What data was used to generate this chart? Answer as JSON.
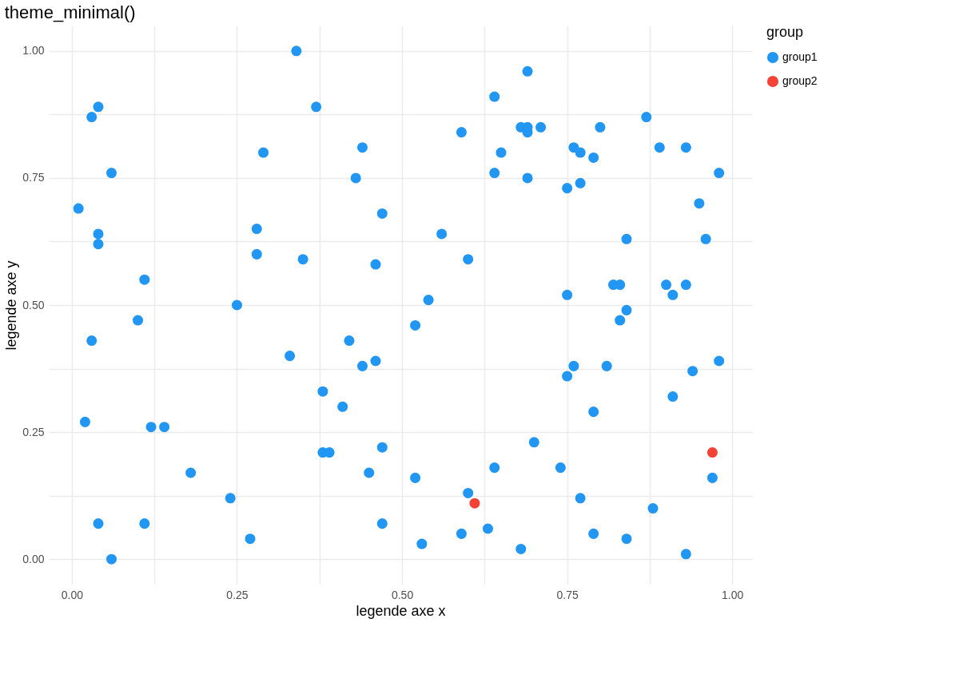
{
  "chart_data": {
    "type": "scatter",
    "title": "theme_minimal()",
    "xlabel": "legende axe x",
    "ylabel": "legende axe y",
    "legend_title": "group",
    "legend": "right",
    "grid": true,
    "marker": "circle",
    "xlim": [
      -0.035,
      1.03
    ],
    "ylim": [
      -0.05,
      1.05
    ],
    "xticks": [
      {
        "value": 0,
        "label": "0.00"
      },
      {
        "value": 0.125,
        "label": null
      },
      {
        "value": 0.25,
        "label": "0.25"
      },
      {
        "value": 0.375,
        "label": null
      },
      {
        "value": 0.5,
        "label": "0.50"
      },
      {
        "value": 0.625,
        "label": null
      },
      {
        "value": 0.75,
        "label": "0.75"
      },
      {
        "value": 0.875,
        "label": null
      },
      {
        "value": 1,
        "label": "1.00"
      }
    ],
    "yticks": [
      {
        "value": 0,
        "label": "0.00"
      },
      {
        "value": 0.125,
        "label": null
      },
      {
        "value": 0.25,
        "label": "0.25"
      },
      {
        "value": 0.375,
        "label": null
      },
      {
        "value": 0.5,
        "label": "0.50"
      },
      {
        "value": 0.625,
        "label": null
      },
      {
        "value": 0.75,
        "label": "0.75"
      },
      {
        "value": 0.875,
        "label": null
      },
      {
        "value": 1,
        "label": "1.00"
      }
    ],
    "series": [
      {
        "name": "group1",
        "color": "#2196f3",
        "x": [
          0.34,
          0.69,
          0.04,
          0.03,
          0.37,
          0.64,
          0.87,
          0.59,
          0.68,
          0.69,
          0.69,
          0.71,
          0.8,
          0.44,
          0.29,
          0.65,
          0.76,
          0.77,
          0.79,
          0.89,
          0.93,
          0.06,
          0.43,
          0.64,
          0.69,
          0.75,
          0.77,
          0.98,
          0.95,
          0.01,
          0.47,
          0.04,
          0.04,
          0.28,
          0.28,
          0.56,
          0.84,
          0.96,
          0.35,
          0.6,
          0.46,
          0.11,
          0.82,
          0.83,
          0.9,
          0.93,
          0.25,
          0.54,
          0.75,
          0.91,
          0.84,
          0.83,
          0.1,
          0.52,
          0.03,
          0.42,
          0.33,
          0.44,
          0.46,
          0.76,
          0.81,
          0.98,
          0.94,
          0.75,
          0.38,
          0.91,
          0.41,
          0.79,
          0.02,
          0.12,
          0.14,
          0.7,
          0.38,
          0.39,
          0.47,
          0.18,
          0.45,
          0.64,
          0.74,
          0.97,
          0.52,
          0.6,
          0.24,
          0.77,
          0.88,
          0.04,
          0.11,
          0.47,
          0.63,
          0.59,
          0.79,
          0.27,
          0.84,
          0.53,
          0.68,
          0.93,
          0.06
        ],
        "values": [
          1.0,
          0.96,
          0.89,
          0.87,
          0.89,
          0.91,
          0.87,
          0.84,
          0.85,
          0.85,
          0.84,
          0.85,
          0.85,
          0.81,
          0.8,
          0.8,
          0.81,
          0.8,
          0.79,
          0.81,
          0.81,
          0.76,
          0.75,
          0.76,
          0.75,
          0.73,
          0.74,
          0.76,
          0.7,
          0.69,
          0.68,
          0.64,
          0.62,
          0.65,
          0.6,
          0.64,
          0.63,
          0.63,
          0.59,
          0.59,
          0.58,
          0.55,
          0.54,
          0.54,
          0.54,
          0.54,
          0.5,
          0.51,
          0.52,
          0.52,
          0.49,
          0.47,
          0.47,
          0.46,
          0.43,
          0.43,
          0.4,
          0.38,
          0.39,
          0.38,
          0.38,
          0.39,
          0.37,
          0.36,
          0.33,
          0.32,
          0.3,
          0.29,
          0.27,
          0.26,
          0.26,
          0.23,
          0.21,
          0.21,
          0.22,
          0.17,
          0.17,
          0.18,
          0.18,
          0.16,
          0.16,
          0.13,
          0.12,
          0.12,
          0.1,
          0.07,
          0.07,
          0.07,
          0.06,
          0.05,
          0.05,
          0.04,
          0.04,
          0.03,
          0.02,
          0.01,
          0.0
        ]
      },
      {
        "name": "group2",
        "color": "#f44336",
        "x": [
          0.97,
          0.61
        ],
        "values": [
          0.21,
          0.11
        ]
      }
    ]
  }
}
